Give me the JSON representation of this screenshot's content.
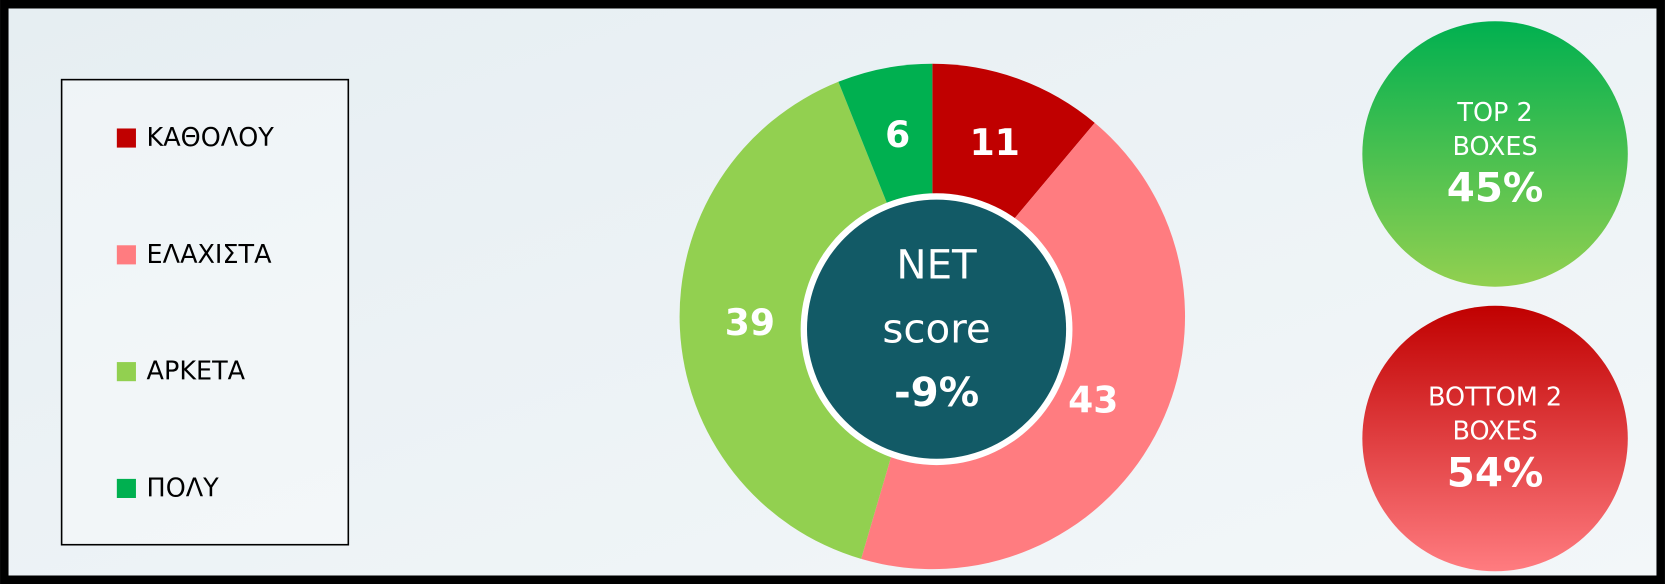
{
  "chart_data": {
    "type": "pie",
    "categories": [
      "ΚΑΘΟΛΟΥ",
      "ΕΛΑΧΙΣΤΑ",
      "ΑΡΚΕΤΑ",
      "ΠΟΛΥ"
    ],
    "values": [
      11,
      43,
      39,
      6
    ],
    "colors": [
      "#c00000",
      "#ff7c80",
      "#92d050",
      "#00b050"
    ],
    "center_label": [
      "NET",
      "score"
    ],
    "center_value": "-9%",
    "summaries": [
      {
        "label": "TOP 2 BOXES",
        "value": "45%",
        "colors": [
          "#00b050",
          "#92d050"
        ]
      },
      {
        "label": "BOTTOM 2 BOXES",
        "value": "54%",
        "colors": [
          "#c00000",
          "#ff7c80"
        ]
      }
    ]
  }
}
